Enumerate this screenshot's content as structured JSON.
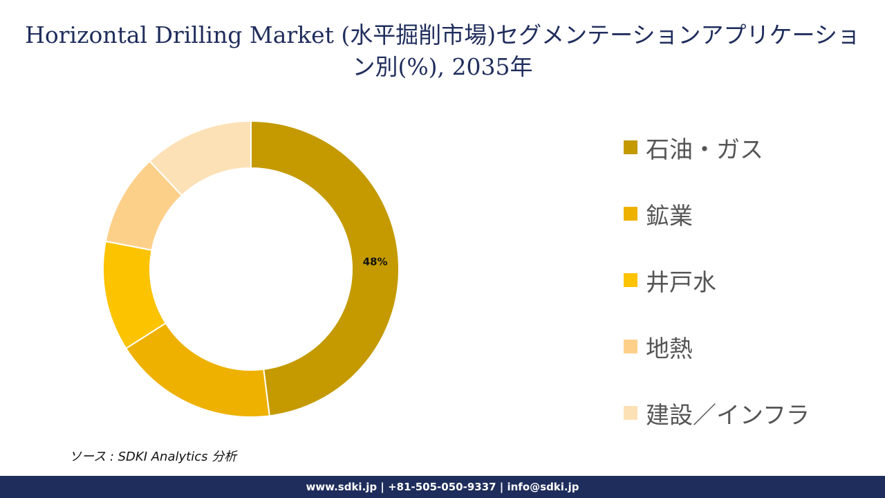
{
  "title": "Horizontal Drilling Market (水平掘削市場)セグメンテーションアプリケーション別(%), 2035年",
  "source": "ソース : SDKI Analytics 分析",
  "footer": "www.sdki.jp | +81-505-050-9337 | info@sdki.jp",
  "chart_data": {
    "type": "pie",
    "title": "Horizontal Drilling Market (水平掘削市場)セグメンテーションアプリケーション別(%), 2035年",
    "donut": true,
    "legend_position": "right",
    "categories": [
      "石油・ガス",
      "鉱業",
      "井戸水",
      "地熱",
      "建設／インフラ"
    ],
    "values": [
      48,
      18,
      12,
      10,
      12
    ],
    "data_labels": [
      "48%",
      "",
      "",
      "",
      ""
    ],
    "colors": [
      "#c49a00",
      "#eeb100",
      "#fcc300",
      "#fdd08a",
      "#fde1b6"
    ]
  }
}
